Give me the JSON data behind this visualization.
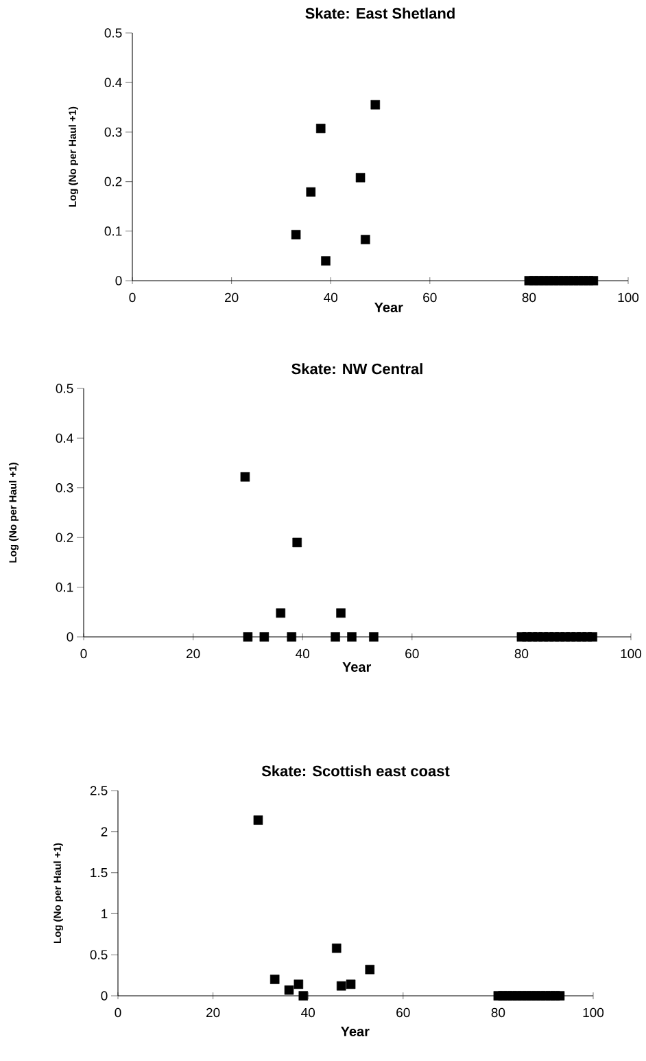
{
  "chart_data": [
    {
      "type": "scatter",
      "title": "Skate: East Shetland",
      "xlabel": "Year",
      "ylabel": "Log (No per Haul +1)",
      "marker": "square",
      "color": "#000000",
      "x": [
        33,
        36,
        38,
        39,
        46,
        47,
        49,
        80,
        81,
        82,
        83,
        84,
        85,
        86,
        87,
        88,
        89,
        90,
        91,
        92,
        93
      ],
      "values": [
        0.093,
        0.179,
        0.307,
        0.04,
        0.208,
        0.083,
        0.355,
        0,
        0,
        0,
        0,
        0,
        0,
        0,
        0,
        0,
        0,
        0,
        0,
        0,
        0
      ],
      "xlim": [
        0,
        100
      ],
      "xticks": [
        0,
        20,
        40,
        60,
        80,
        100
      ],
      "ylim": [
        0,
        0.5
      ],
      "yticks": [
        0,
        0.1,
        0.2,
        0.3,
        0.4,
        0.5
      ]
    },
    {
      "type": "scatter",
      "title": "Skate: NW Central",
      "xlabel": "Year",
      "ylabel": "Log (No per Haul +1)",
      "marker": "square",
      "color": "#000000",
      "x": [
        29.5,
        30,
        33,
        36,
        38,
        39,
        46,
        47,
        49,
        53,
        80,
        81,
        82,
        83,
        84,
        85,
        86,
        87,
        88,
        89,
        90,
        91,
        92,
        93
      ],
      "values": [
        0.322,
        0,
        0,
        0.048,
        0,
        0.19,
        0,
        0.048,
        0,
        0,
        0,
        0,
        0,
        0,
        0,
        0,
        0,
        0,
        0,
        0,
        0,
        0,
        0,
        0
      ],
      "xlim": [
        0,
        100
      ],
      "xticks": [
        0,
        20,
        40,
        60,
        80,
        100
      ],
      "ylim": [
        0,
        0.5
      ],
      "yticks": [
        0,
        0.1,
        0.2,
        0.3,
        0.4,
        0.5
      ]
    },
    {
      "type": "scatter",
      "title": "Skate: Scottish east coast",
      "xlabel": "Year",
      "ylabel": "Log (No per Haul +1)",
      "marker": "square",
      "color": "#000000",
      "x": [
        29.5,
        33,
        36,
        38,
        39,
        46,
        47,
        49,
        53,
        80,
        81,
        82,
        83,
        84,
        85,
        86,
        87,
        88,
        89,
        90,
        91,
        92,
        93
      ],
      "values": [
        2.14,
        0.2,
        0.07,
        0.14,
        0,
        0.58,
        0.12,
        0.14,
        0.32,
        0,
        0,
        0,
        0,
        0,
        0,
        0,
        0,
        0,
        0,
        0,
        0,
        0,
        0
      ],
      "xlim": [
        0,
        100
      ],
      "xticks": [
        0,
        20,
        40,
        60,
        80,
        100
      ],
      "ylim": [
        0,
        2.5
      ],
      "yticks": [
        0,
        0.5,
        1,
        1.5,
        2,
        2.5
      ]
    }
  ]
}
